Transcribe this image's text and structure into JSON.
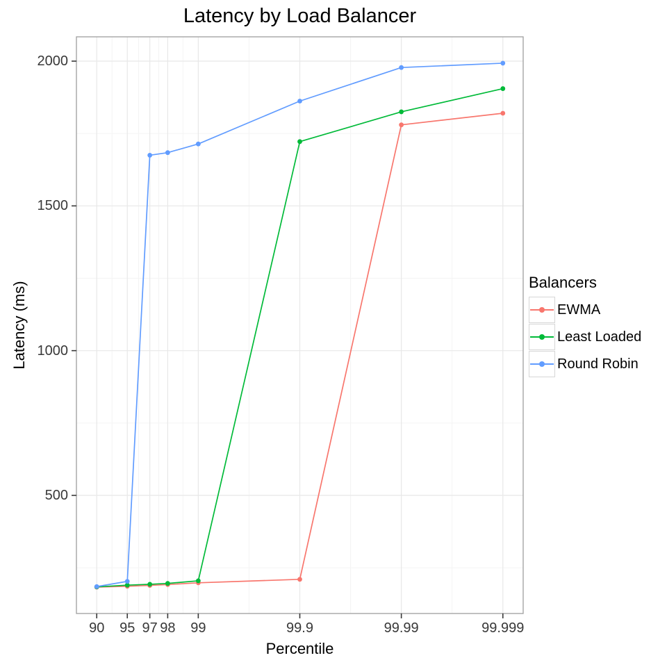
{
  "chart_data": {
    "type": "line",
    "title": "Latency by Load Balancer",
    "xlabel": "Percentile",
    "ylabel": "Latency (ms)",
    "x_scale": "log10(100 - percentile), reversed (probit-style tail scale)",
    "x": [
      90,
      95,
      97,
      98,
      99,
      99.9,
      99.99,
      99.999
    ],
    "x_tick_labels": [
      "90",
      "95",
      "97",
      "98",
      "99",
      "99.9",
      "99.99",
      "99.999"
    ],
    "y_ticks": [
      500,
      1000,
      1500,
      2000
    ],
    "y_tick_labels": [
      "500",
      "1000",
      "1500",
      "2000"
    ],
    "y_minor_ticks": [
      250,
      750,
      1250,
      1750
    ],
    "ylim": [
      92,
      2084
    ],
    "grid": true,
    "legend_title": "Balancers",
    "legend_position": "right",
    "series": [
      {
        "name": "EWMA",
        "color": "#F8766D",
        "values": [
          183,
          186,
          189,
          192,
          198,
          210,
          1780,
          1820
        ]
      },
      {
        "name": "Least Loaded",
        "color": "#00BA38",
        "values": [
          184,
          190,
          193,
          196,
          205,
          1722,
          1825,
          1905
        ]
      },
      {
        "name": "Round Robin",
        "color": "#619CFF",
        "values": [
          185,
          203,
          1675,
          1684,
          1714,
          1862,
          1978,
          1993
        ]
      }
    ]
  },
  "colors": {
    "background": "#ffffff",
    "panel_border": "#9e9e9e",
    "grid_major": "#e8e8e8",
    "grid_minor": "#f4f4f4",
    "tick_mark": "#383838",
    "axis_text": "#383838",
    "legend_key_border": "#d6d6d6"
  }
}
